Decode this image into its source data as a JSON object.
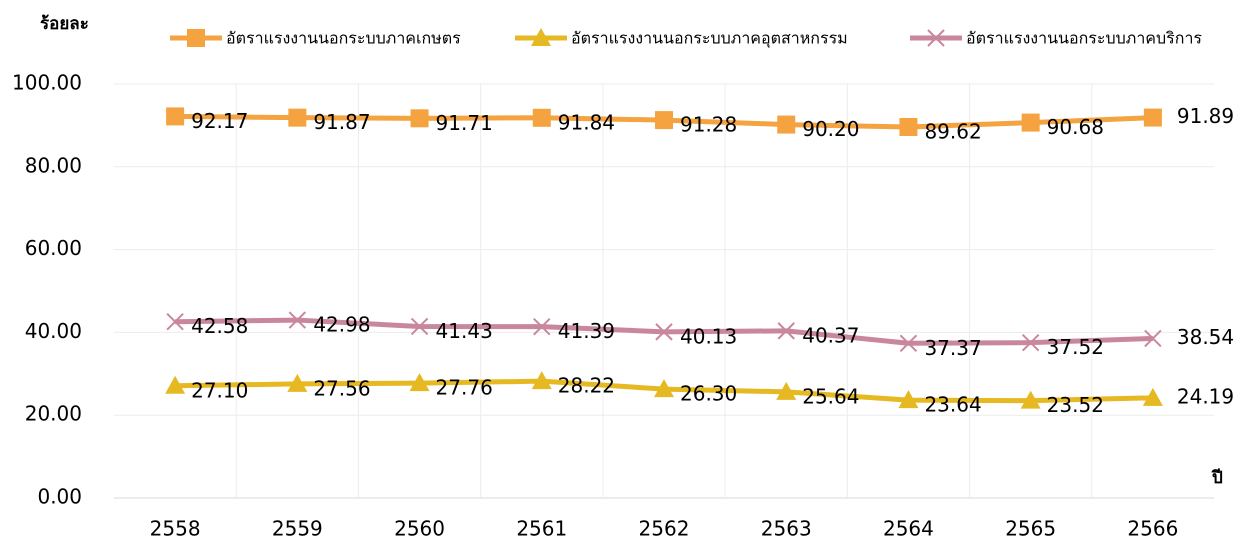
{
  "chart_data": {
    "type": "line",
    "ylabel": "ร้อยละ",
    "xlabel": "ปี",
    "categories": [
      "2558",
      "2559",
      "2560",
      "2561",
      "2562",
      "2563",
      "2564",
      "2565",
      "2566"
    ],
    "ylim": [
      0,
      100
    ],
    "yticks": [
      {
        "value": 0,
        "label": "0.00"
      },
      {
        "value": 20,
        "label": "20.00"
      },
      {
        "value": 40,
        "label": "40.00"
      },
      {
        "value": 60,
        "label": "60.00"
      },
      {
        "value": 80,
        "label": "80.00"
      },
      {
        "value": 100,
        "label": "100.00"
      }
    ],
    "grid": true,
    "series": [
      {
        "name": "อัตราแรงงานนอกระบบภาคเกษตร",
        "color": "#F4A340",
        "marker": "square",
        "values": [
          92.17,
          91.87,
          91.71,
          91.84,
          91.28,
          90.2,
          89.62,
          90.68,
          91.89
        ],
        "value_labels": [
          "92.17",
          "91.87",
          "91.71",
          "91.84",
          "91.28",
          "90.20",
          "89.62",
          "90.68",
          "91.89"
        ]
      },
      {
        "name": "อัตราแรงงานนอกระบบภาคอุตสาหกรรม",
        "color": "#E6B822",
        "marker": "triangle",
        "values": [
          27.1,
          27.56,
          27.76,
          28.22,
          26.3,
          25.64,
          23.64,
          23.52,
          24.19
        ],
        "value_labels": [
          "27.10",
          "27.56",
          "27.76",
          "28.22",
          "26.30",
          "25.64",
          "23.64",
          "23.52",
          "24.19"
        ]
      },
      {
        "name": "อัตราแรงงานนอกระบบภาคบริการ",
        "color": "#C9879C",
        "marker": "cross",
        "values": [
          42.58,
          42.98,
          41.43,
          41.39,
          40.13,
          40.37,
          37.37,
          37.52,
          38.54
        ],
        "value_labels": [
          "42.58",
          "42.98",
          "41.43",
          "41.39",
          "40.13",
          "40.37",
          "37.37",
          "37.52",
          "38.54"
        ]
      }
    ]
  }
}
